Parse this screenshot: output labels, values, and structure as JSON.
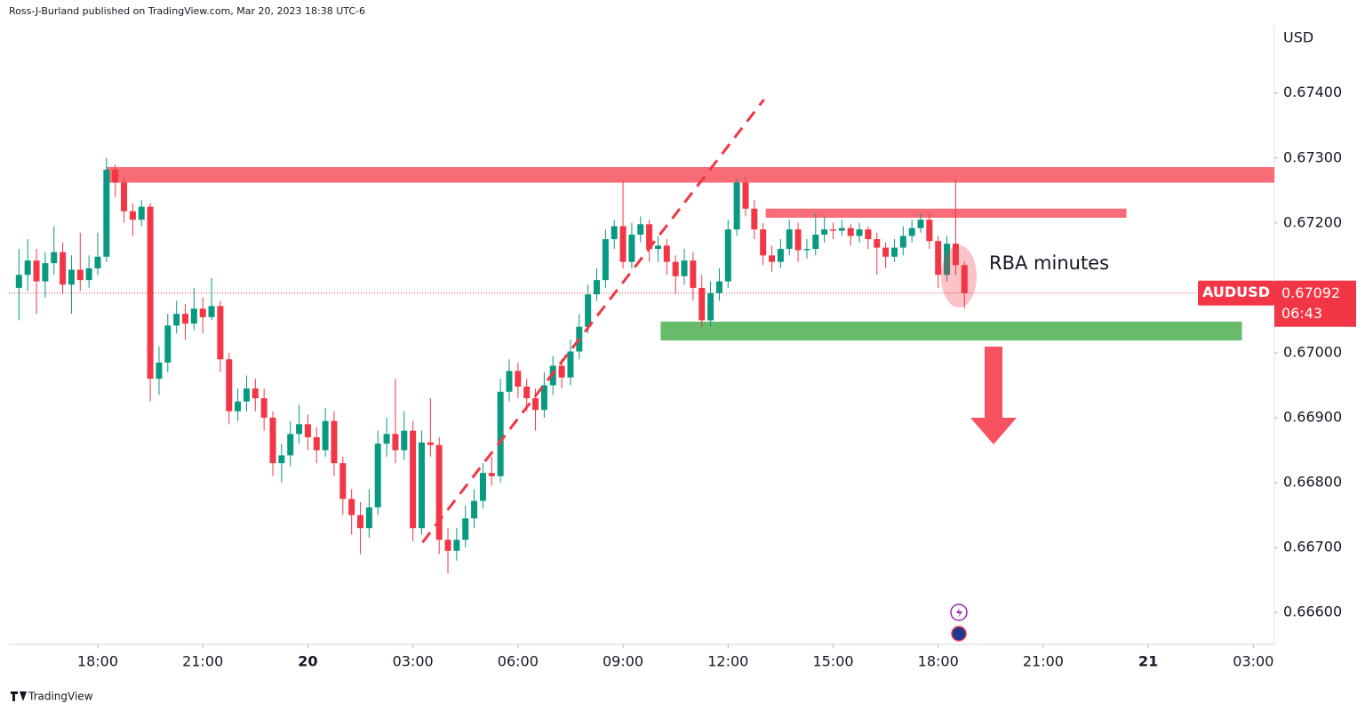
{
  "header": "Ross-J-Burland published on TradingView.com, Mar 20, 2023 18:38 UTC-6",
  "footer": "TradingView",
  "chart_data": {
    "type": "candlestick",
    "currency": "USD",
    "symbol": "AUDUSD",
    "last_price": 0.67092,
    "countdown": "06:43",
    "up_color": "#089981",
    "down_color": "#f23645",
    "ylim": [
      0.66551,
      0.67505
    ],
    "yticks": [
      {
        "value": 0.666,
        "label": "0.66600"
      },
      {
        "value": 0.667,
        "label": "0.66700"
      },
      {
        "value": 0.668,
        "label": "0.66800"
      },
      {
        "value": 0.669,
        "label": "0.66900"
      },
      {
        "value": 0.67,
        "label": "0.67000"
      },
      {
        "value": 0.671,
        "label": "0.67100"
      },
      {
        "value": 0.672,
        "label": "0.67200"
      },
      {
        "value": 0.673,
        "label": "0.67300"
      },
      {
        "value": 0.674,
        "label": "0.67400"
      }
    ],
    "xlim": [
      -1.15,
      143.4
    ],
    "xticks": [
      {
        "value": 9,
        "label": "18:00"
      },
      {
        "value": 21,
        "label": "21:00"
      },
      {
        "value": 33,
        "label": "20"
      },
      {
        "value": 45,
        "label": "03:00"
      },
      {
        "value": 57,
        "label": "06:00"
      },
      {
        "value": 69,
        "label": "09:00"
      },
      {
        "value": 81,
        "label": "12:00"
      },
      {
        "value": 93,
        "label": "15:00"
      },
      {
        "value": 105,
        "label": "18:00"
      },
      {
        "value": 117,
        "label": "21:00"
      },
      {
        "value": 129,
        "label": "21"
      },
      {
        "value": 141,
        "label": "03:00"
      }
    ],
    "zones": [
      {
        "color": "#f7525f",
        "price": [
          0.67262,
          0.67286
        ],
        "span": [
          10,
          143.4
        ]
      },
      {
        "color": "#f7525f",
        "price": [
          0.67208,
          0.67222
        ],
        "span": [
          85.3,
          126.5
        ]
      },
      {
        "color": "#4caf50",
        "price": [
          0.67019,
          0.67048
        ],
        "span": [
          73.3,
          139.7
        ]
      }
    ],
    "trendline": {
      "color": "#f23645",
      "points": [
        [
          46.1,
          0.66708
        ],
        [
          85.1,
          0.6739
        ]
      ]
    },
    "note": "RBA minutes",
    "candles": [
      [
        0.671,
        0.6716,
        0.6705,
        0.6712
      ],
      [
        0.6712,
        0.67175,
        0.67095,
        0.67142
      ],
      [
        0.67142,
        0.6716,
        0.6706,
        0.6711
      ],
      [
        0.6711,
        0.67155,
        0.67085,
        0.67138
      ],
      [
        0.67138,
        0.67195,
        0.6712,
        0.67155
      ],
      [
        0.67155,
        0.6717,
        0.6709,
        0.67105
      ],
      [
        0.67105,
        0.6715,
        0.6706,
        0.67128
      ],
      [
        0.67128,
        0.67185,
        0.67095,
        0.67112
      ],
      [
        0.67112,
        0.6715,
        0.671,
        0.6713
      ],
      [
        0.6713,
        0.67185,
        0.6712,
        0.67148
      ],
      [
        0.67148,
        0.673,
        0.6714,
        0.67282
      ],
      [
        0.67282,
        0.6729,
        0.6724,
        0.67262
      ],
      [
        0.67262,
        0.6727,
        0.672,
        0.67218
      ],
      [
        0.67218,
        0.6723,
        0.6718,
        0.67205
      ],
      [
        0.67205,
        0.67235,
        0.67195,
        0.67225
      ],
      [
        0.67225,
        0.6723,
        0.66925,
        0.6696
      ],
      [
        0.6696,
        0.6701,
        0.66935,
        0.66985
      ],
      [
        0.66985,
        0.6706,
        0.6697,
        0.67042
      ],
      [
        0.67042,
        0.6708,
        0.6703,
        0.6706
      ],
      [
        0.6706,
        0.67075,
        0.6702,
        0.67045
      ],
      [
        0.67045,
        0.671,
        0.67035,
        0.67068
      ],
      [
        0.67068,
        0.67085,
        0.6703,
        0.67055
      ],
      [
        0.67055,
        0.67115,
        0.6705,
        0.67072
      ],
      [
        0.67072,
        0.6708,
        0.6697,
        0.6699
      ],
      [
        0.6699,
        0.67,
        0.6689,
        0.6691
      ],
      [
        0.6691,
        0.66945,
        0.66895,
        0.66925
      ],
      [
        0.66925,
        0.66965,
        0.6691,
        0.66945
      ],
      [
        0.66945,
        0.6696,
        0.6691,
        0.6693
      ],
      [
        0.6693,
        0.66945,
        0.6688,
        0.669
      ],
      [
        0.669,
        0.6691,
        0.6681,
        0.6683
      ],
      [
        0.6683,
        0.6686,
        0.668,
        0.66842
      ],
      [
        0.66842,
        0.66895,
        0.66825,
        0.66875
      ],
      [
        0.66875,
        0.6692,
        0.6686,
        0.6689
      ],
      [
        0.6689,
        0.66905,
        0.6685,
        0.6687
      ],
      [
        0.6687,
        0.66885,
        0.6683,
        0.6685
      ],
      [
        0.6685,
        0.66915,
        0.6684,
        0.66895
      ],
      [
        0.66895,
        0.6691,
        0.6681,
        0.6683
      ],
      [
        0.6683,
        0.6684,
        0.6675,
        0.66775
      ],
      [
        0.66775,
        0.6679,
        0.6672,
        0.6675
      ],
      [
        0.6675,
        0.6677,
        0.6669,
        0.6673
      ],
      [
        0.6673,
        0.6679,
        0.66715,
        0.66762
      ],
      [
        0.66762,
        0.6688,
        0.6675,
        0.6686
      ],
      [
        0.6686,
        0.669,
        0.6684,
        0.66875
      ],
      [
        0.66875,
        0.6696,
        0.6683,
        0.6685
      ],
      [
        0.6685,
        0.6691,
        0.66835,
        0.6688
      ],
      [
        0.6688,
        0.66895,
        0.6671,
        0.6673
      ],
      [
        0.6673,
        0.6688,
        0.6672,
        0.66862
      ],
      [
        0.66862,
        0.6693,
        0.6684,
        0.66858
      ],
      [
        0.66858,
        0.6687,
        0.6669,
        0.66712
      ],
      [
        0.66712,
        0.6673,
        0.6666,
        0.66695
      ],
      [
        0.66695,
        0.6673,
        0.6668,
        0.66712
      ],
      [
        0.66712,
        0.66765,
        0.667,
        0.66745
      ],
      [
        0.66745,
        0.6679,
        0.6673,
        0.66772
      ],
      [
        0.66772,
        0.6683,
        0.6676,
        0.66815
      ],
      [
        0.66815,
        0.6684,
        0.66795,
        0.6681
      ],
      [
        0.6681,
        0.6696,
        0.668,
        0.6694
      ],
      [
        0.6694,
        0.6699,
        0.66925,
        0.66972
      ],
      [
        0.66972,
        0.66985,
        0.6693,
        0.66948
      ],
      [
        0.66948,
        0.6696,
        0.6691,
        0.6693
      ],
      [
        0.6693,
        0.66945,
        0.6688,
        0.66912
      ],
      [
        0.66912,
        0.6697,
        0.669,
        0.6695
      ],
      [
        0.6695,
        0.66995,
        0.66935,
        0.6698
      ],
      [
        0.6698,
        0.6699,
        0.66945,
        0.66962
      ],
      [
        0.66962,
        0.6702,
        0.6695,
        0.67002
      ],
      [
        0.67002,
        0.6706,
        0.6699,
        0.6704
      ],
      [
        0.6704,
        0.67105,
        0.6703,
        0.6709
      ],
      [
        0.6709,
        0.6713,
        0.6708,
        0.67112
      ],
      [
        0.67112,
        0.6719,
        0.671,
        0.67175
      ],
      [
        0.67175,
        0.67205,
        0.6716,
        0.67195
      ],
      [
        0.67195,
        0.67265,
        0.6713,
        0.6714
      ],
      [
        0.6714,
        0.672,
        0.6713,
        0.67182
      ],
      [
        0.67182,
        0.6721,
        0.6717,
        0.67198
      ],
      [
        0.67198,
        0.67205,
        0.6714,
        0.6716
      ],
      [
        0.6716,
        0.6718,
        0.6714,
        0.67165
      ],
      [
        0.67165,
        0.67175,
        0.6712,
        0.6714
      ],
      [
        0.6714,
        0.6715,
        0.6709,
        0.67118
      ],
      [
        0.67118,
        0.6716,
        0.67105,
        0.67142
      ],
      [
        0.67142,
        0.67155,
        0.6708,
        0.671
      ],
      [
        0.671,
        0.6712,
        0.6704,
        0.6705
      ],
      [
        0.6705,
        0.6711,
        0.6704,
        0.67092
      ],
      [
        0.67092,
        0.6713,
        0.6708,
        0.6711
      ],
      [
        0.6711,
        0.67205,
        0.671,
        0.6719
      ],
      [
        0.6719,
        0.67268,
        0.6718,
        0.67262
      ],
      [
        0.67262,
        0.6727,
        0.6721,
        0.67222
      ],
      [
        0.67222,
        0.67235,
        0.67175,
        0.6719
      ],
      [
        0.6719,
        0.672,
        0.67135,
        0.6715
      ],
      [
        0.6715,
        0.67165,
        0.67125,
        0.6714
      ],
      [
        0.6714,
        0.67175,
        0.6713,
        0.6716
      ],
      [
        0.6716,
        0.67205,
        0.6715,
        0.6719
      ],
      [
        0.6719,
        0.672,
        0.6714,
        0.67158
      ],
      [
        0.67158,
        0.67175,
        0.67145,
        0.6716
      ],
      [
        0.6716,
        0.67215,
        0.6715,
        0.67182
      ],
      [
        0.67182,
        0.6721,
        0.6717,
        0.6719
      ],
      [
        0.6719,
        0.672,
        0.67175,
        0.67188
      ],
      [
        0.67188,
        0.67205,
        0.6718,
        0.67192
      ],
      [
        0.67192,
        0.67198,
        0.67165,
        0.6718
      ],
      [
        0.6718,
        0.672,
        0.6717,
        0.6719
      ],
      [
        0.6719,
        0.67195,
        0.6716,
        0.67175
      ],
      [
        0.67175,
        0.67185,
        0.6712,
        0.67162
      ],
      [
        0.67162,
        0.6717,
        0.6713,
        0.67148
      ],
      [
        0.67148,
        0.67175,
        0.6714,
        0.67162
      ],
      [
        0.67162,
        0.67195,
        0.6715,
        0.6718
      ],
      [
        0.6718,
        0.67205,
        0.6717,
        0.67192
      ],
      [
        0.67192,
        0.67215,
        0.67185,
        0.67205
      ],
      [
        0.67205,
        0.67215,
        0.6716,
        0.67172
      ],
      [
        0.67172,
        0.6718,
        0.671,
        0.6712
      ],
      [
        0.6712,
        0.6718,
        0.6711,
        0.67168
      ],
      [
        0.67168,
        0.67268,
        0.6712,
        0.67135
      ],
      [
        0.67135,
        0.6714,
        0.67068,
        0.67092
      ]
    ]
  }
}
